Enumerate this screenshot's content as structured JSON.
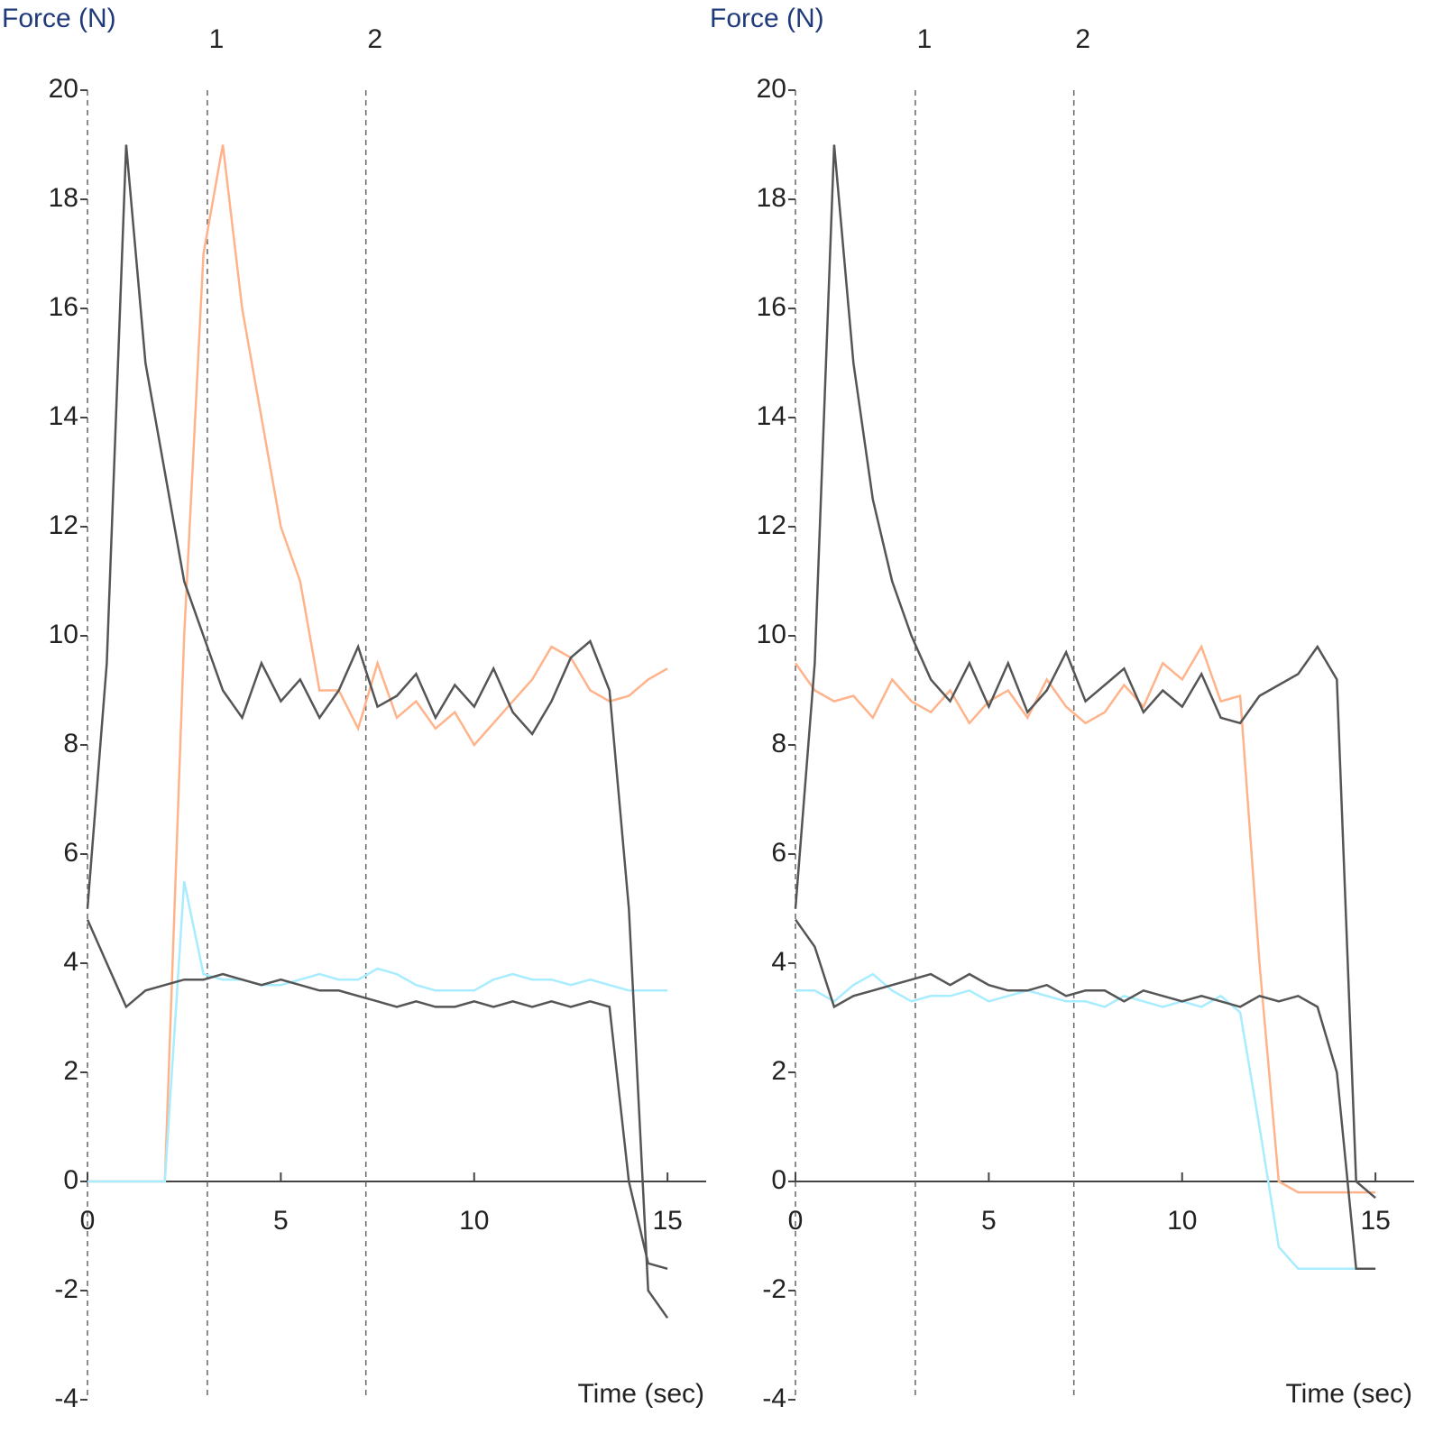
{
  "chart_data": [
    {
      "type": "line",
      "ylabel": "Force (N)",
      "xlabel": "Time (sec)",
      "x": [
        0,
        0.5,
        1,
        1.5,
        2,
        2.5,
        3,
        3.5,
        4,
        4.5,
        5,
        5.5,
        6,
        6.5,
        7,
        7.5,
        8,
        8.5,
        9,
        9.5,
        10,
        10.5,
        11,
        11.5,
        12,
        12.5,
        13,
        13.5,
        14,
        14.5,
        15
      ],
      "series": [
        {
          "color": "#ffb38a",
          "values": [
            0,
            0,
            0,
            0,
            0,
            10,
            17,
            19,
            16,
            14,
            12,
            11,
            9,
            9,
            8.3,
            9.5,
            8.5,
            8.8,
            8.3,
            8.6,
            8,
            8.4,
            8.8,
            9.2,
            9.8,
            9.6,
            9,
            8.8,
            8.9,
            9.2,
            9.4
          ]
        },
        {
          "color": "#a8ecff",
          "values": [
            0,
            0,
            0,
            0,
            0,
            5.5,
            3.8,
            3.7,
            3.7,
            3.6,
            3.6,
            3.7,
            3.8,
            3.7,
            3.7,
            3.9,
            3.8,
            3.6,
            3.5,
            3.5,
            3.5,
            3.7,
            3.8,
            3.7,
            3.7,
            3.6,
            3.7,
            3.6,
            3.5,
            3.5,
            3.5
          ]
        },
        {
          "color": "#555555",
          "values": [
            5,
            9.5,
            19,
            15,
            13,
            11,
            10,
            9,
            8.5,
            9.5,
            8.8,
            9.2,
            8.5,
            9,
            9.8,
            8.7,
            8.9,
            9.3,
            8.5,
            9.1,
            8.7,
            9.4,
            8.6,
            8.2,
            8.8,
            9.6,
            9.9,
            9,
            5,
            -2,
            -2.5
          ]
        },
        {
          "color": "#555555",
          "values": [
            4.8,
            4,
            3.2,
            3.5,
            3.6,
            3.7,
            3.7,
            3.8,
            3.7,
            3.6,
            3.7,
            3.6,
            3.5,
            3.5,
            3.4,
            3.3,
            3.2,
            3.3,
            3.2,
            3.2,
            3.3,
            3.2,
            3.3,
            3.2,
            3.3,
            3.2,
            3.3,
            3.2,
            0,
            -1.5,
            -1.6
          ]
        }
      ],
      "events": [
        {
          "x": 3.1,
          "label": "1"
        },
        {
          "x": 7.2,
          "label": "2"
        }
      ],
      "xlim": [
        0,
        16
      ],
      "ylim": [
        -4,
        20
      ],
      "xticks": [
        0,
        5,
        10,
        15
      ],
      "yticks": [
        -4,
        -2,
        0,
        2,
        4,
        6,
        8,
        10,
        12,
        14,
        16,
        18,
        20
      ]
    },
    {
      "type": "line",
      "ylabel": "Force (N)",
      "xlabel": "Time (sec)",
      "x": [
        0,
        0.5,
        1,
        1.5,
        2,
        2.5,
        3,
        3.5,
        4,
        4.5,
        5,
        5.5,
        6,
        6.5,
        7,
        7.5,
        8,
        8.5,
        9,
        9.5,
        10,
        10.5,
        11,
        11.5,
        12,
        12.5,
        13,
        13.5,
        14,
        14.5,
        15
      ],
      "series": [
        {
          "color": "#ffb38a",
          "values": [
            9.5,
            9,
            8.8,
            8.9,
            8.5,
            9.2,
            8.8,
            8.6,
            9,
            8.4,
            8.8,
            9,
            8.5,
            9.2,
            8.7,
            8.4,
            8.6,
            9.1,
            8.7,
            9.5,
            9.2,
            9.8,
            8.8,
            8.9,
            4,
            0,
            -0.2,
            -0.2,
            -0.2,
            -0.2,
            -0.2
          ]
        },
        {
          "color": "#a8ecff",
          "values": [
            3.5,
            3.5,
            3.3,
            3.6,
            3.8,
            3.5,
            3.3,
            3.4,
            3.4,
            3.5,
            3.3,
            3.4,
            3.5,
            3.4,
            3.3,
            3.3,
            3.2,
            3.4,
            3.3,
            3.2,
            3.3,
            3.2,
            3.4,
            3.1,
            1,
            -1.2,
            -1.6,
            -1.6,
            -1.6,
            -1.6,
            -1.6
          ]
        },
        {
          "color": "#555555",
          "values": [
            5,
            9.5,
            19,
            15,
            12.5,
            11,
            10,
            9.2,
            8.8,
            9.5,
            8.7,
            9.5,
            8.6,
            9,
            9.7,
            8.8,
            9.1,
            9.4,
            8.6,
            9,
            8.7,
            9.3,
            8.5,
            8.4,
            8.9,
            9.1,
            9.3,
            9.8,
            9.2,
            0,
            -0.3
          ]
        },
        {
          "color": "#555555",
          "values": [
            4.8,
            4.3,
            3.2,
            3.4,
            3.5,
            3.6,
            3.7,
            3.8,
            3.6,
            3.8,
            3.6,
            3.5,
            3.5,
            3.6,
            3.4,
            3.5,
            3.5,
            3.3,
            3.5,
            3.4,
            3.3,
            3.4,
            3.3,
            3.2,
            3.4,
            3.3,
            3.4,
            3.2,
            2,
            -1.6,
            -1.6
          ]
        }
      ],
      "events": [
        {
          "x": 3.1,
          "label": "1"
        },
        {
          "x": 7.2,
          "label": "2"
        }
      ],
      "xlim": [
        0,
        16
      ],
      "ylim": [
        -4,
        20
      ],
      "xticks": [
        0,
        5,
        10,
        15
      ],
      "yticks": [
        -4,
        -2,
        0,
        2,
        4,
        6,
        8,
        10,
        12,
        14,
        16,
        18,
        20
      ]
    }
  ]
}
